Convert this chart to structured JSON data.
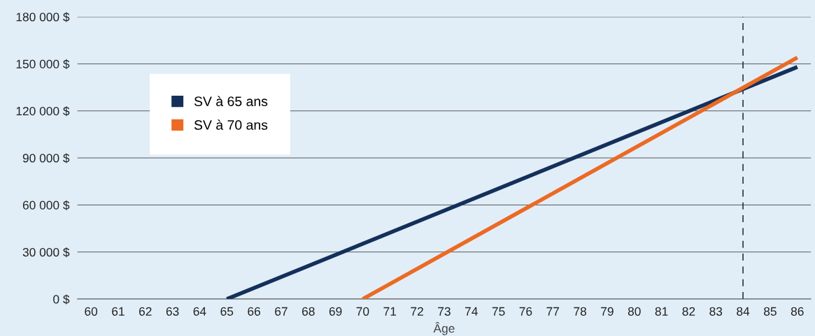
{
  "chart_data": {
    "type": "line",
    "xlabel": "Âge",
    "series": [
      {
        "name": "SV à 65 ans",
        "color": "#14305a",
        "x": [
          65,
          86
        ],
        "values": [
          0,
          148000
        ]
      },
      {
        "name": "SV à 70 ans",
        "color": "#ec6a24",
        "x": [
          70,
          86
        ],
        "values": [
          0,
          154000
        ]
      }
    ],
    "xlim": [
      59.5,
      86.5
    ],
    "xticks": [
      60,
      61,
      62,
      63,
      64,
      65,
      66,
      67,
      68,
      69,
      70,
      71,
      72,
      73,
      74,
      75,
      76,
      77,
      78,
      79,
      80,
      81,
      82,
      83,
      84,
      85,
      86
    ],
    "ylim": [
      0,
      180000
    ],
    "yticks": [
      {
        "value": 0,
        "label": "0 $"
      },
      {
        "value": 30000,
        "label": "30 000 $"
      },
      {
        "value": 60000,
        "label": "60 000 $"
      },
      {
        "value": 90000,
        "label": "90 000 $"
      },
      {
        "value": 120000,
        "label": "120 000 $"
      },
      {
        "value": 150000,
        "label": "150 000 $"
      },
      {
        "value": 180000,
        "label": "180 000 $"
      }
    ],
    "ref_lines": [
      {
        "axis": "x",
        "value": 84,
        "color": "#333333",
        "line_style": "dashed"
      }
    ],
    "grid": "y",
    "legend": "top left",
    "marker": "none",
    "line_style": "solid"
  }
}
